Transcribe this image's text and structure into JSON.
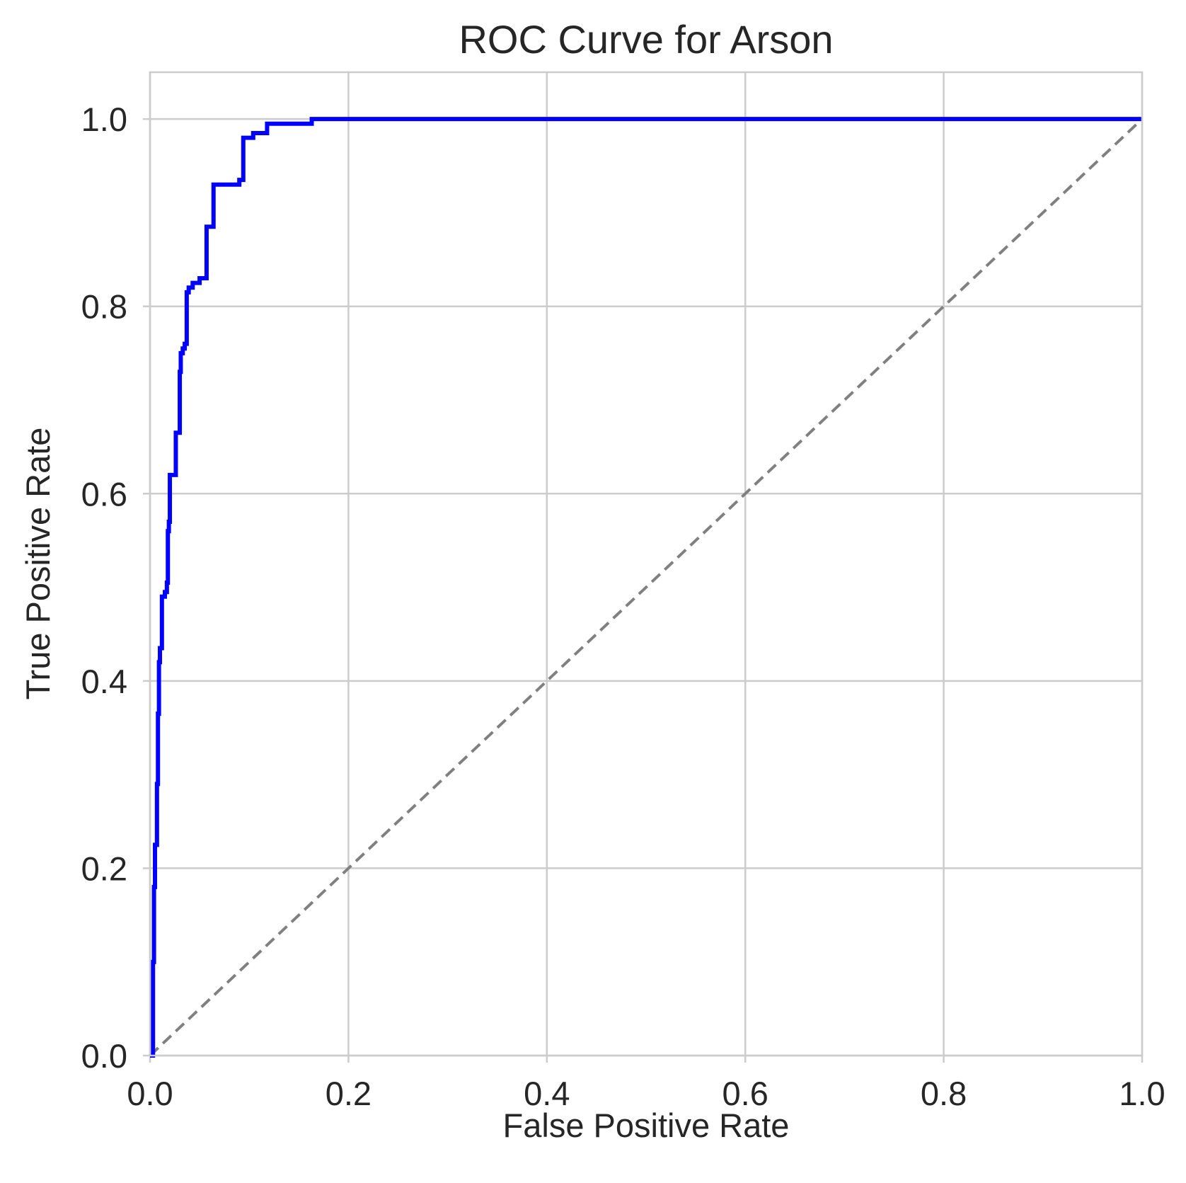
{
  "colors": {
    "roc_curve": "#0000ff",
    "reference_line": "#808080",
    "grid": "#cccccc",
    "text": "#262626",
    "background": "#ffffff"
  },
  "chart_data": {
    "type": "line",
    "title": "ROC Curve for Arson",
    "xlabel": "False Positive Rate",
    "ylabel": "True Positive Rate",
    "xlim": [
      0.0,
      1.0
    ],
    "ylim": [
      0.0,
      1.05
    ],
    "x_ticks": [
      0.0,
      0.2,
      0.4,
      0.6,
      0.8,
      1.0
    ],
    "x_tick_labels": [
      "0.0",
      "0.2",
      "0.4",
      "0.6",
      "0.8",
      "1.0"
    ],
    "y_ticks": [
      0.0,
      0.2,
      0.4,
      0.6,
      0.8,
      1.0
    ],
    "y_tick_labels": [
      "0.0",
      "0.2",
      "0.4",
      "0.6",
      "0.8",
      "1.0"
    ],
    "grid": true,
    "legend": "none",
    "series": [
      {
        "style": "solid",
        "color": "#0000ff",
        "x": [
          0.0,
          0.003,
          0.003,
          0.004,
          0.004,
          0.005,
          0.005,
          0.007,
          0.007,
          0.008,
          0.008,
          0.009,
          0.009,
          0.01,
          0.01,
          0.012,
          0.012,
          0.015,
          0.015,
          0.017,
          0.017,
          0.018,
          0.018,
          0.019,
          0.019,
          0.02,
          0.02,
          0.026,
          0.026,
          0.03,
          0.03,
          0.031,
          0.031,
          0.033,
          0.033,
          0.035,
          0.035,
          0.037,
          0.037,
          0.039,
          0.039,
          0.043,
          0.043,
          0.05,
          0.05,
          0.057,
          0.057,
          0.064,
          0.064,
          0.09,
          0.09,
          0.094,
          0.094,
          0.104,
          0.104,
          0.118,
          0.118,
          0.163,
          0.163,
          1.0
        ],
        "y": [
          0.0,
          0.0,
          0.1,
          0.1,
          0.18,
          0.18,
          0.225,
          0.225,
          0.29,
          0.29,
          0.365,
          0.365,
          0.42,
          0.42,
          0.435,
          0.435,
          0.49,
          0.49,
          0.495,
          0.495,
          0.505,
          0.505,
          0.56,
          0.56,
          0.57,
          0.57,
          0.62,
          0.62,
          0.665,
          0.665,
          0.73,
          0.73,
          0.75,
          0.75,
          0.755,
          0.755,
          0.76,
          0.76,
          0.815,
          0.815,
          0.82,
          0.82,
          0.825,
          0.825,
          0.83,
          0.83,
          0.885,
          0.885,
          0.93,
          0.93,
          0.935,
          0.935,
          0.98,
          0.98,
          0.985,
          0.985,
          0.995,
          0.995,
          1.0,
          1.0
        ]
      },
      {
        "style": "dashed",
        "color": "#808080",
        "x": [
          0.0,
          1.0
        ],
        "y": [
          0.0,
          1.0
        ]
      }
    ]
  }
}
